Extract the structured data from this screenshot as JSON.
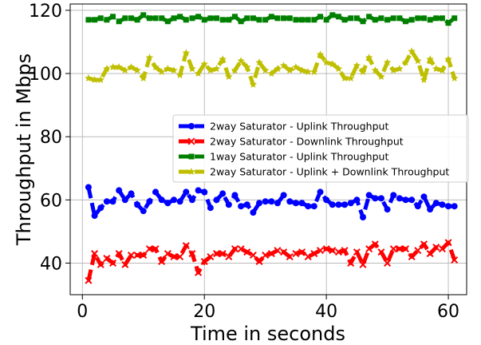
{
  "chart_data": {
    "type": "line",
    "title": "",
    "xlabel": "Time in seconds",
    "ylabel": "Throughput in Mbps",
    "xlim": [
      -2.0,
      63.0
    ],
    "ylim": [
      30,
      122
    ],
    "xticks": [
      0,
      20,
      40,
      60
    ],
    "yticks": [
      40,
      60,
      80,
      100,
      120
    ],
    "grid": true,
    "legend_position": "center-right",
    "x": [
      1,
      2,
      3,
      4,
      5,
      6,
      7,
      8,
      9,
      10,
      11,
      12,
      13,
      14,
      15,
      16,
      17,
      18,
      19,
      20,
      21,
      22,
      23,
      24,
      25,
      26,
      27,
      28,
      29,
      30,
      31,
      32,
      33,
      34,
      35,
      36,
      37,
      38,
      39,
      40,
      41,
      42,
      43,
      44,
      45,
      46,
      47,
      48,
      49,
      50,
      51,
      52,
      53,
      54,
      55,
      56,
      57,
      58,
      59,
      60,
      61
    ],
    "series": [
      {
        "name": "2way Saturator - Uplink Throughput",
        "color": "#0000ff",
        "marker": "circle",
        "values": [
          64.0,
          55.0,
          57.5,
          59.5,
          59.5,
          63.0,
          60.0,
          62.0,
          58.5,
          56.5,
          59.5,
          62.5,
          60.0,
          59.0,
          60.0,
          59.5,
          62.5,
          60.0,
          63.0,
          62.5,
          57.5,
          60.0,
          62.0,
          58.5,
          61.5,
          58.0,
          58.5,
          56.0,
          59.0,
          59.5,
          59.5,
          59.0,
          61.5,
          59.5,
          59.0,
          59.0,
          58.0,
          58.0,
          62.5,
          60.0,
          58.5,
          58.5,
          58.5,
          59.0,
          60.0,
          54.5,
          61.5,
          60.5,
          60.5,
          57.0,
          61.5,
          60.5,
          60.0,
          60.0,
          58.0,
          61.0,
          57.0,
          59.0,
          58.5,
          58.0,
          58.0
        ]
      },
      {
        "name": "2way Saturator - Downlink Throughput",
        "color": "#ff0000",
        "marker": "x",
        "values": [
          34.5,
          43.0,
          39.5,
          41.5,
          40.0,
          43.0,
          39.5,
          42.5,
          42.5,
          42.5,
          44.5,
          44.5,
          40.5,
          43.0,
          42.0,
          42.0,
          45.5,
          43.0,
          37.0,
          40.5,
          42.0,
          43.0,
          43.0,
          42.0,
          44.5,
          44.5,
          43.5,
          42.5,
          40.5,
          42.5,
          43.0,
          44.0,
          43.5,
          42.0,
          43.0,
          43.5,
          42.0,
          43.0,
          44.0,
          44.5,
          44.0,
          43.5,
          44.0,
          40.0,
          43.5,
          39.5,
          44.5,
          46.0,
          43.5,
          40.0,
          44.5,
          44.5,
          44.5,
          42.0,
          44.0,
          46.0,
          43.0,
          45.0,
          44.5,
          46.5,
          41.0
        ]
      },
      {
        "name": "1way Saturator - Uplink Throughput",
        "color": "#008000",
        "marker": "square",
        "values": [
          117.0,
          117.0,
          117.5,
          117.0,
          118.0,
          116.5,
          117.5,
          117.5,
          117.0,
          118.5,
          117.5,
          117.5,
          117.5,
          116.5,
          117.5,
          118.0,
          117.0,
          117.5,
          118.0,
          117.0,
          117.5,
          117.5,
          117.0,
          117.0,
          118.0,
          116.5,
          117.5,
          117.5,
          117.0,
          117.0,
          118.0,
          117.5,
          117.5,
          117.5,
          117.0,
          117.0,
          117.0,
          117.0,
          118.0,
          117.0,
          118.5,
          118.0,
          117.0,
          117.5,
          117.5,
          116.5,
          118.0,
          117.0,
          117.5,
          117.0,
          117.5,
          117.5,
          116.5,
          117.0,
          117.5,
          117.5,
          117.0,
          117.5,
          117.5,
          116.0,
          117.5
        ]
      },
      {
        "name": "2way Saturator - Uplink + Downlink Throughput",
        "color": "#bfbf00",
        "marker": "star",
        "values": [
          98.5,
          98.0,
          98.0,
          101.5,
          102.0,
          102.0,
          101.0,
          102.0,
          101.0,
          98.5,
          105.0,
          102.0,
          100.5,
          101.5,
          101.0,
          99.5,
          106.5,
          101.5,
          100.0,
          103.0,
          101.0,
          101.5,
          104.5,
          99.0,
          101.0,
          104.0,
          102.0,
          96.5,
          103.5,
          101.0,
          100.0,
          101.5,
          102.5,
          101.0,
          102.0,
          101.0,
          100.5,
          100.5,
          106.0,
          103.5,
          103.0,
          101.5,
          98.5,
          98.5,
          102.5,
          100.5,
          105.0,
          101.0,
          99.0,
          103.5,
          101.0,
          101.5,
          103.5,
          107.0,
          104.0,
          98.0,
          104.5,
          101.5,
          101.0,
          104.5,
          98.5
        ]
      }
    ]
  }
}
